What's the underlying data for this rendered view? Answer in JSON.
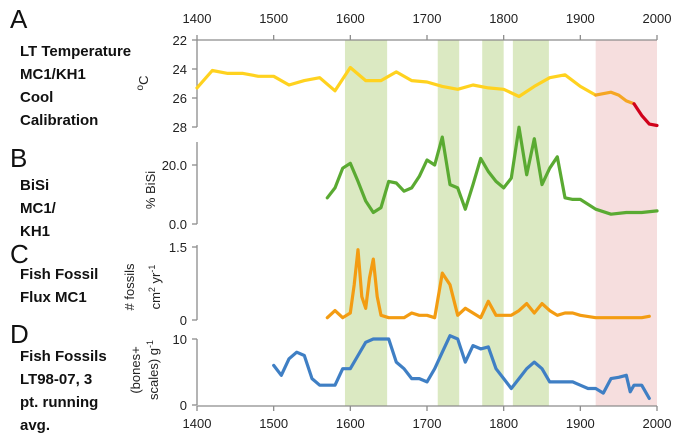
{
  "chart_data": {
    "type": "line",
    "x_axis": {
      "range": [
        1400,
        2000
      ],
      "ticks": [
        1400,
        1500,
        1600,
        1700,
        1800,
        1900,
        2000
      ]
    },
    "highlight_bands": [
      {
        "from": 1593,
        "to": 1648,
        "color": "#dbe9c2"
      },
      {
        "from": 1714,
        "to": 1742,
        "color": "#dbe9c2"
      },
      {
        "from": 1772,
        "to": 1800,
        "color": "#dbe9c2"
      },
      {
        "from": 1812,
        "to": 1859,
        "color": "#dbe9c2"
      },
      {
        "from": 1920,
        "to": 2000,
        "color": "#f6dede"
      }
    ],
    "panels": [
      {
        "letter": "A",
        "description": [
          "LT Temperature",
          "MC1/KH1",
          "Cool",
          "Calibration"
        ],
        "ylabel": "oC",
        "yrange": [
          22,
          28
        ],
        "y_inverted": true,
        "yticks": [
          "22",
          "24",
          "26",
          "28"
        ],
        "series": [
          {
            "color": "#ffd21f",
            "x": [
              1400,
              1420,
              1440,
              1460,
              1480,
              1500,
              1520,
              1540,
              1560,
              1580,
              1600,
              1620,
              1640,
              1660,
              1680,
              1700,
              1720,
              1740,
              1760,
              1780,
              1800,
              1820,
              1840,
              1860,
              1880,
              1900,
              1920
            ],
            "y": [
              25.3,
              24.1,
              24.3,
              24.3,
              24.5,
              24.5,
              25.1,
              24.8,
              24.6,
              25.5,
              23.9,
              24.8,
              24.8,
              24.2,
              24.8,
              24.9,
              25.2,
              25.4,
              25.1,
              25.3,
              25.4,
              25.9,
              25.2,
              24.6,
              24.4,
              25.2,
              25.8
            ]
          },
          {
            "color": "#f5a623",
            "x": [
              1920,
              1940,
              1950,
              1960,
              1970
            ],
            "y": [
              25.8,
              25.6,
              25.8,
              26.2,
              26.4
            ]
          },
          {
            "color": "#d0021b",
            "x": [
              1970,
              1980,
              1990,
              2000
            ],
            "y": [
              26.4,
              27.2,
              27.8,
              27.9
            ]
          }
        ]
      },
      {
        "letter": "B",
        "description": [
          "BiSi",
          "MC1/",
          "KH1"
        ],
        "ylabel": "% BiSi",
        "yrange": [
          0,
          25
        ],
        "yticks": [
          "0.0",
          "20.0"
        ],
        "ytick_values": [
          0,
          20
        ],
        "series": [
          {
            "color": "#5aaa32",
            "x": [
              1570,
              1580,
              1590,
              1600,
              1610,
              1620,
              1630,
              1640,
              1650,
              1660,
              1670,
              1680,
              1690,
              1700,
              1710,
              1720,
              1730,
              1740,
              1750,
              1760,
              1770,
              1780,
              1790,
              1800,
              1810,
              1820,
              1830,
              1840,
              1850,
              1860,
              1870,
              1880,
              1890,
              1900,
              1920,
              1940,
              1960,
              1980,
              2000
            ],
            "y": [
              8,
              11,
              17,
              18.5,
              13,
              7,
              3.5,
              5,
              13,
              12.5,
              10,
              11,
              14.5,
              19.5,
              18,
              26.5,
              12,
              11,
              4.5,
              12,
              20,
              16,
              13,
              11,
              14,
              29.5,
              15,
              26,
              12,
              17,
              20.5,
              8,
              7.5,
              7.5,
              4.5,
              3,
              3.5,
              3.5,
              4
            ]
          }
        ]
      },
      {
        "letter": "C",
        "description": [
          "Fish Fossil",
          "Flux MC1"
        ],
        "ylabel": "# fossils cm2 yr-1",
        "yrange": [
          0,
          1.6
        ],
        "yticks": [
          "0",
          "1.5"
        ],
        "ytick_values": [
          0,
          1.5
        ],
        "series": [
          {
            "color": "#f39c12",
            "x": [
              1570,
              1580,
              1590,
              1600,
              1605,
              1610,
              1615,
              1620,
              1625,
              1630,
              1635,
              1640,
              1650,
              1660,
              1670,
              1680,
              1690,
              1700,
              1710,
              1720,
              1730,
              1740,
              1750,
              1760,
              1770,
              1780,
              1790,
              1800,
              1810,
              1820,
              1830,
              1840,
              1850,
              1860,
              1870,
              1880,
              1890,
              1900,
              1920,
              1940,
              1960,
              1980,
              1990
            ],
            "y": [
              0.05,
              0.2,
              0.05,
              0.15,
              0.75,
              1.5,
              0.5,
              0.25,
              0.9,
              1.3,
              0.5,
              0.1,
              0.05,
              0.05,
              0.05,
              0.15,
              0.1,
              0.1,
              0.05,
              1.0,
              0.75,
              0.1,
              0.25,
              0.15,
              0.05,
              0.4,
              0.1,
              0.1,
              0.1,
              0.2,
              0.35,
              0.15,
              0.35,
              0.2,
              0.1,
              0.15,
              0.15,
              0.1,
              0.05,
              0.05,
              0.05,
              0.05,
              0.08
            ]
          }
        ]
      },
      {
        "letter": "D",
        "description": [
          "Fish Fossils",
          "LT98-07, 3",
          "pt. running",
          "avg."
        ],
        "ylabel": "(bones+ scales) g-1",
        "yrange": [
          0,
          10
        ],
        "yticks": [
          "0",
          "10"
        ],
        "ytick_values": [
          0,
          10
        ],
        "series": [
          {
            "color": "#3f7fc4",
            "x": [
              1500,
              1510,
              1520,
              1530,
              1540,
              1550,
              1560,
              1570,
              1580,
              1590,
              1600,
              1610,
              1620,
              1630,
              1640,
              1650,
              1660,
              1670,
              1680,
              1690,
              1700,
              1710,
              1720,
              1730,
              1740,
              1750,
              1760,
              1770,
              1780,
              1790,
              1800,
              1810,
              1820,
              1830,
              1840,
              1850,
              1860,
              1870,
              1880,
              1890,
              1900,
              1910,
              1920,
              1930,
              1940,
              1950,
              1960,
              1965,
              1970,
              1980,
              1990
            ],
            "y": [
              6,
              4.5,
              7,
              8,
              7.5,
              4,
              3,
              3,
              3,
              5.5,
              5.5,
              7.5,
              9.5,
              10,
              10,
              10,
              6.5,
              5.5,
              4,
              4,
              3.5,
              5.5,
              8,
              10.5,
              10,
              6.5,
              9,
              8.5,
              8.8,
              5.5,
              4,
              2.5,
              4,
              5.5,
              6.5,
              5.5,
              3.5,
              3.5,
              3.5,
              3.5,
              3,
              2.5,
              2.5,
              1.8,
              4,
              4.2,
              4.5,
              2,
              3,
              3,
              1
            ]
          }
        ]
      }
    ]
  }
}
